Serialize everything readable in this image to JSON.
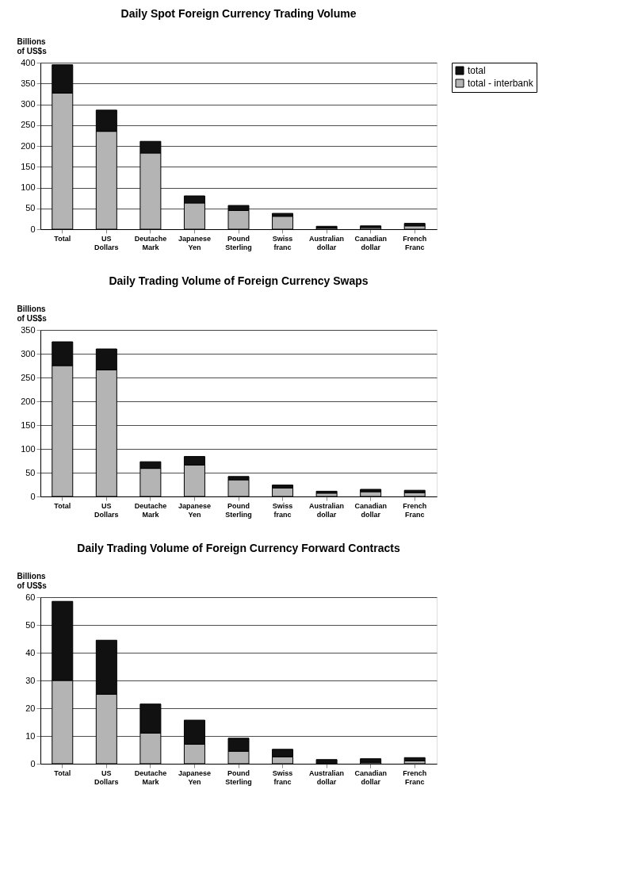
{
  "chart_data": [
    {
      "type": "bar",
      "title": "Daily Spot Foreign Currency Trading Volume",
      "ylabel": "Billions of US$s",
      "categories": [
        "Total",
        "US Dollars",
        "Deutache Mark",
        "Japanese Yen",
        "Pound Sterling",
        "Swiss franc",
        "Australian dollar",
        "Canadian dollar",
        "French Franc"
      ],
      "stacked": true,
      "legend": "right",
      "grid": "y",
      "ylim": [
        0,
        400
      ],
      "yticks": [
        0,
        50,
        100,
        150,
        200,
        250,
        300,
        350,
        400
      ],
      "series": [
        {
          "name": "total - interbank",
          "color": "#b4b4b4",
          "values": [
            327,
            235,
            183,
            63,
            45,
            31,
            3,
            4,
            8
          ]
        },
        {
          "name": "total",
          "color": "#111111",
          "values": [
            68,
            51,
            28,
            17,
            12,
            7,
            4,
            4,
            6
          ]
        }
      ]
    },
    {
      "type": "bar",
      "title": "Daily Trading Volume of Foreign Currency Swaps",
      "ylabel": "Billions of US$s",
      "categories": [
        "Total",
        "US Dollars",
        "Deutache Mark",
        "Japanese Yen",
        "Pound Sterling",
        "Swiss franc",
        "Australian dollar",
        "Canadian dollar",
        "French Franc"
      ],
      "stacked": true,
      "legend": "right",
      "grid": "y",
      "ylim": [
        0,
        350
      ],
      "yticks": [
        0,
        50,
        100,
        150,
        200,
        250,
        300,
        350
      ],
      "series": [
        {
          "name": "total - interbank",
          "color": "#b4b4b4",
          "values": [
            275,
            266,
            59,
            66,
            35,
            18,
            7,
            10,
            8
          ]
        },
        {
          "name": "total",
          "color": "#111111",
          "values": [
            50,
            44,
            14,
            18,
            7,
            6,
            4,
            5,
            5
          ]
        }
      ]
    },
    {
      "type": "bar",
      "title": "Daily Trading Volume of Foreign Currency Forward Contracts",
      "ylabel": "Billions of US$s",
      "categories": [
        "Total",
        "US Dollars",
        "Deutache Mark",
        "Japanese Yen",
        "Pound Sterling",
        "Swiss franc",
        "Australian dollar",
        "Canadian dollar",
        "French Franc"
      ],
      "stacked": true,
      "legend": "right",
      "grid": "y",
      "ylim": [
        0,
        60
      ],
      "yticks": [
        0,
        10,
        20,
        30,
        40,
        50,
        60
      ],
      "series": [
        {
          "name": "total - interbank",
          "color": "#b4b4b4",
          "values": [
            30,
            25,
            11,
            7,
            4.5,
            2.5,
            null,
            0.5,
            1
          ]
        },
        {
          "name": "total",
          "color": "#111111",
          "values": [
            28.5,
            19.5,
            10.5,
            8.7,
            4.7,
            2.7,
            1.5,
            1.3,
            1.2
          ]
        }
      ]
    }
  ]
}
